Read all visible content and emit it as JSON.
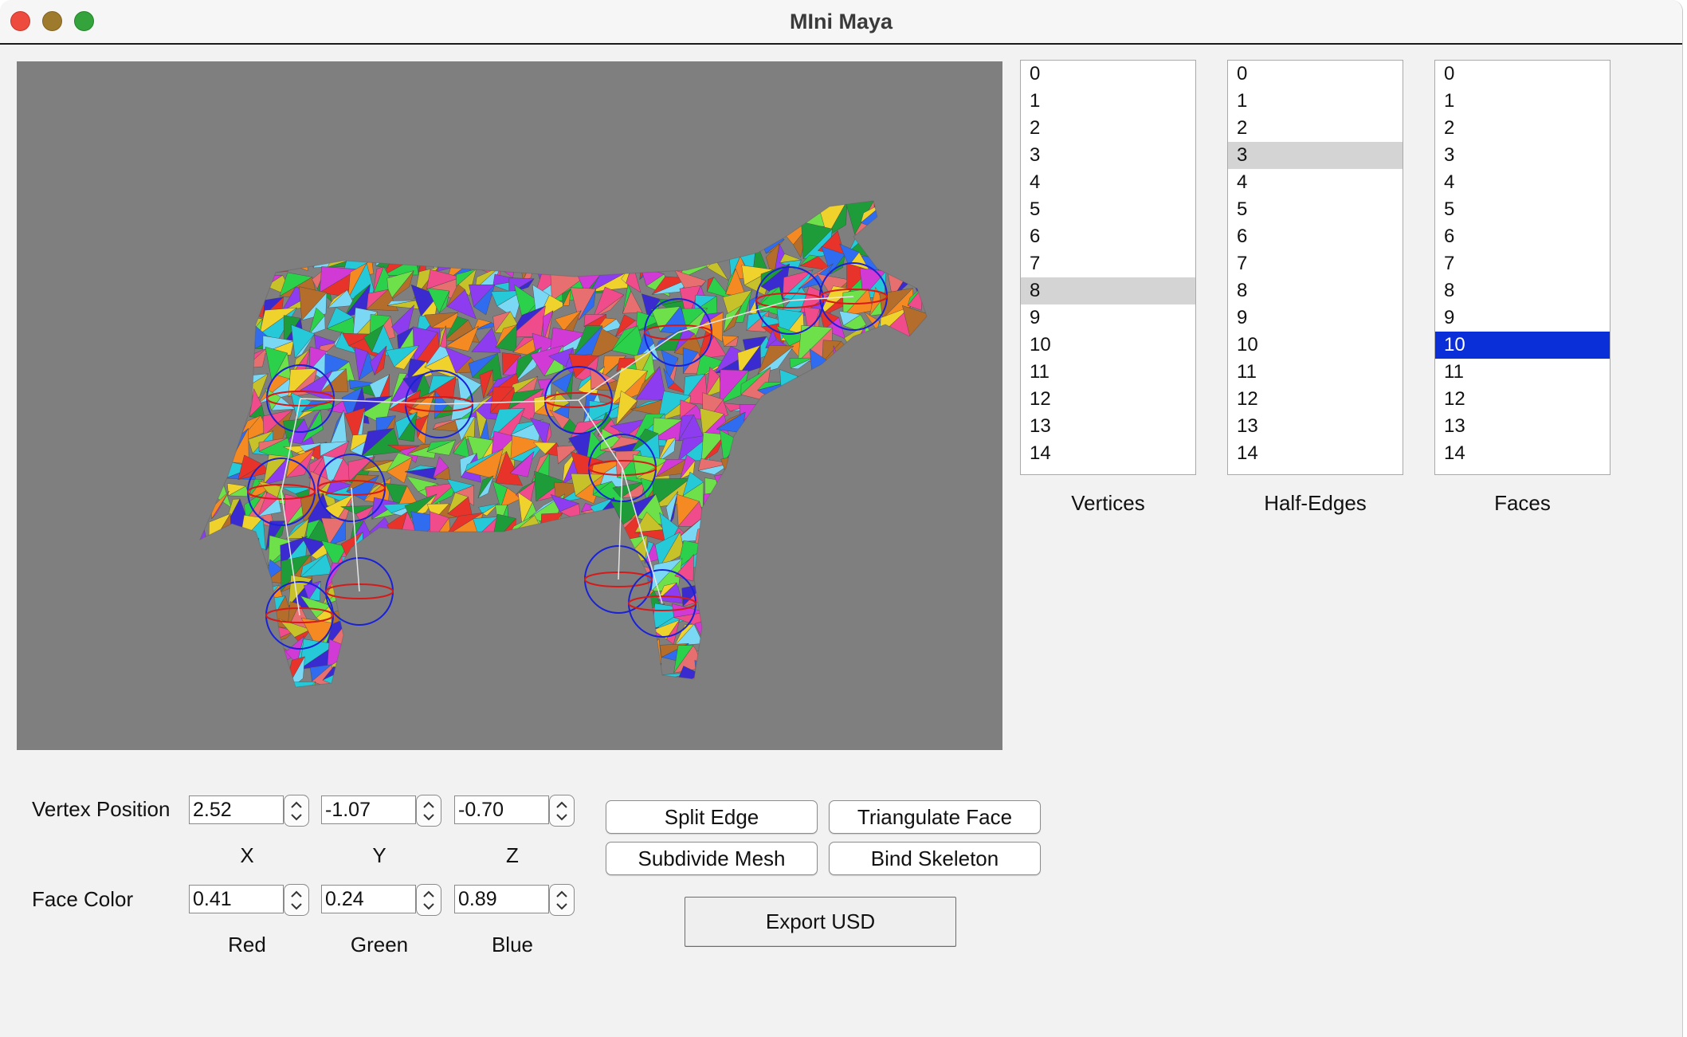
{
  "window": {
    "title": "MIni Maya"
  },
  "lists": {
    "vertices": {
      "label": "Vertices",
      "items": [
        "0",
        "1",
        "2",
        "3",
        "4",
        "5",
        "6",
        "7",
        "8",
        "9",
        "10",
        "11",
        "12",
        "13",
        "14"
      ],
      "selected": "8"
    },
    "half_edges": {
      "label": "Half-Edges",
      "items": [
        "0",
        "1",
        "2",
        "3",
        "4",
        "5",
        "6",
        "7",
        "8",
        "9",
        "10",
        "11",
        "12",
        "13",
        "14"
      ],
      "selected": "3"
    },
    "faces": {
      "label": "Faces",
      "items": [
        "0",
        "1",
        "2",
        "3",
        "4",
        "5",
        "6",
        "7",
        "8",
        "9",
        "10",
        "11",
        "12",
        "13",
        "14"
      ],
      "selected": "10"
    }
  },
  "vertex_position": {
    "label": "Vertex Position",
    "x": "2.52",
    "y": "-1.07",
    "z": "-0.70",
    "x_label": "X",
    "y_label": "Y",
    "z_label": "Z"
  },
  "face_color": {
    "label": "Face Color",
    "red": "0.41",
    "green": "0.24",
    "blue": "0.89",
    "red_label": "Red",
    "green_label": "Green",
    "blue_label": "Blue"
  },
  "buttons": {
    "split_edge": "Split Edge",
    "triangulate_face": "Triangulate Face",
    "subdivide_mesh": "Subdivide Mesh",
    "bind_skeleton": "Bind Skeleton",
    "export_usd": "Export USD"
  },
  "colors": {
    "viewport_bg": "#7f7f7f",
    "selection_blue": "#0a2fd9",
    "selection_gray": "#d4d4d4",
    "joint_blue": "#1a22d6",
    "joint_red": "#d61a1a"
  }
}
